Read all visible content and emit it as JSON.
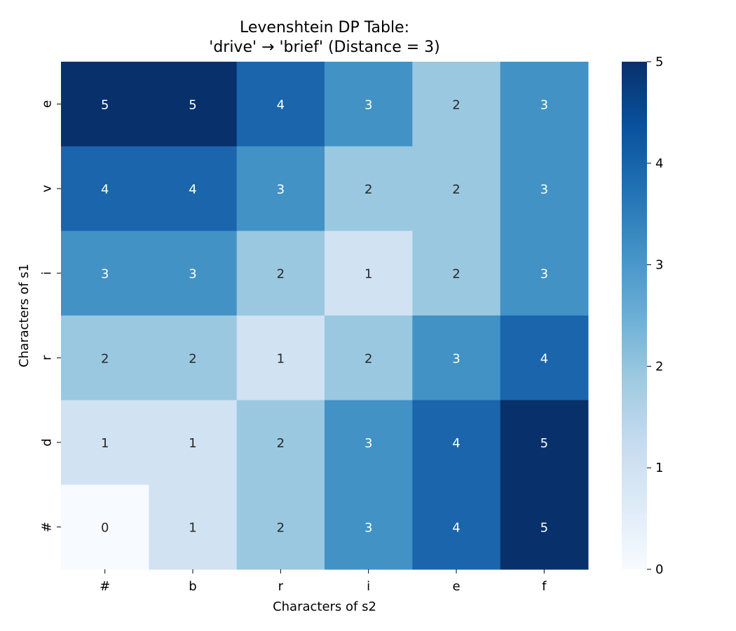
{
  "chart_data": {
    "type": "heatmap",
    "title_lines": [
      "Levenshtein DP Table:",
      "'drive' → 'brief' (Distance = 3)"
    ],
    "xlabel": "Characters of s2",
    "ylabel": "Characters of s1",
    "x_categories": [
      "#",
      "b",
      "r",
      "i",
      "e",
      "f"
    ],
    "y_categories_top_to_bottom": [
      "e",
      "v",
      "i",
      "r",
      "d",
      "#"
    ],
    "values_top_to_bottom": [
      [
        5,
        5,
        4,
        3,
        2,
        3
      ],
      [
        4,
        4,
        3,
        2,
        2,
        3
      ],
      [
        3,
        3,
        2,
        1,
        2,
        3
      ],
      [
        2,
        2,
        1,
        2,
        3,
        4
      ],
      [
        1,
        1,
        2,
        3,
        4,
        5
      ],
      [
        0,
        1,
        2,
        3,
        4,
        5
      ]
    ],
    "colorscale": "Blues",
    "color_stops": [
      "#f7fbff",
      "#d1e2f3",
      "#9ac8e0",
      "#4292c6",
      "#1b65ad",
      "#08306b"
    ],
    "vmin": 0,
    "vmax": 5,
    "colorbar_ticks": [
      "0",
      "1",
      "2",
      "3",
      "4",
      "5"
    ],
    "annotations": true,
    "light_text_color": "#ffffff",
    "dark_text_color": "#262626"
  }
}
